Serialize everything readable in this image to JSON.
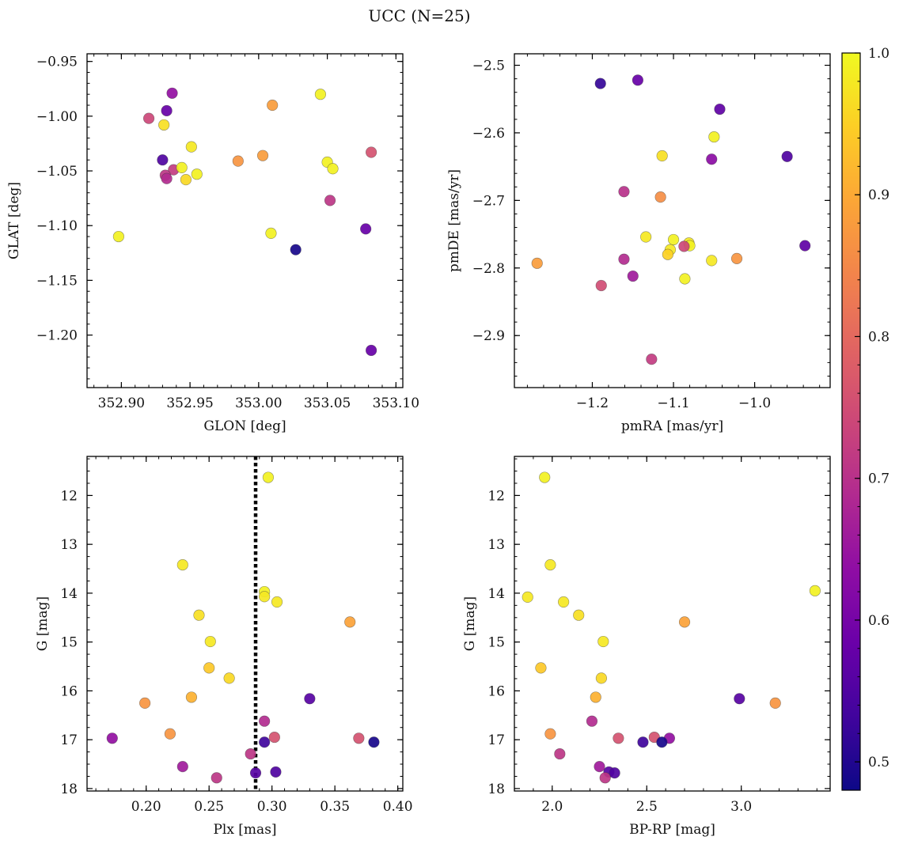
{
  "figure": {
    "title": "UCC (N=25)"
  },
  "colorbar": {
    "range": [
      0.48,
      1.0
    ],
    "ticks": [
      0.5,
      0.6,
      0.7,
      0.8,
      0.9,
      1.0
    ],
    "tick_labels": [
      "0.5",
      "0.6",
      "0.7",
      "0.8",
      "0.9",
      "1.0"
    ],
    "colormap": "plasma"
  },
  "chart_data": [
    {
      "type": "scatter",
      "id": "glon-glat",
      "xlabel": "GLON [deg]",
      "ylabel": "GLAT [deg]",
      "xlim": [
        352.875,
        353.105
      ],
      "ylim": [
        -1.248,
        -0.943
      ],
      "xticks": [
        352.9,
        352.95,
        353.0,
        353.05,
        353.1
      ],
      "xtick_labels": [
        "352.90",
        "352.95",
        "353.00",
        "353.05",
        "353.10"
      ],
      "yticks": [
        -0.95,
        -1.0,
        -1.05,
        -1.1,
        -1.15,
        -1.2
      ],
      "ytick_labels": [
        "−0.95",
        "−1.00",
        "−1.05",
        "−1.10",
        "−1.15",
        "−1.20"
      ],
      "y_inverted": false,
      "points": [
        {
          "x": 352.937,
          "y": -0.979,
          "c": 0.64
        },
        {
          "x": 352.92,
          "y": -1.002,
          "c": 0.74
        },
        {
          "x": 352.933,
          "y": -0.995,
          "c": 0.58
        },
        {
          "x": 352.931,
          "y": -1.008,
          "c": 0.97
        },
        {
          "x": 352.951,
          "y": -1.028,
          "c": 0.98
        },
        {
          "x": 352.93,
          "y": -1.04,
          "c": 0.55
        },
        {
          "x": 352.938,
          "y": -1.049,
          "c": 0.72
        },
        {
          "x": 352.932,
          "y": -1.054,
          "c": 0.71
        },
        {
          "x": 352.933,
          "y": -1.057,
          "c": 0.69
        },
        {
          "x": 352.944,
          "y": -1.047,
          "c": 0.99
        },
        {
          "x": 352.947,
          "y": -1.058,
          "c": 0.96
        },
        {
          "x": 352.955,
          "y": -1.053,
          "c": 0.99
        },
        {
          "x": 352.985,
          "y": -1.041,
          "c": 0.87
        },
        {
          "x": 353.003,
          "y": -1.036,
          "c": 0.88
        },
        {
          "x": 353.01,
          "y": -0.99,
          "c": 0.88
        },
        {
          "x": 353.045,
          "y": -0.98,
          "c": 0.99
        },
        {
          "x": 353.05,
          "y": -1.042,
          "c": 0.99
        },
        {
          "x": 353.054,
          "y": -1.048,
          "c": 0.99
        },
        {
          "x": 353.052,
          "y": -1.077,
          "c": 0.71
        },
        {
          "x": 353.082,
          "y": -1.033,
          "c": 0.76
        },
        {
          "x": 352.898,
          "y": -1.11,
          "c": 0.99
        },
        {
          "x": 353.009,
          "y": -1.107,
          "c": 0.99
        },
        {
          "x": 353.027,
          "y": -1.122,
          "c": 0.49
        },
        {
          "x": 353.078,
          "y": -1.103,
          "c": 0.58
        },
        {
          "x": 353.082,
          "y": -1.214,
          "c": 0.58
        }
      ]
    },
    {
      "type": "scatter",
      "id": "pmra-pmde",
      "xlabel": "pmRA [mas/yr]",
      "ylabel": "pmDE [mas/yr]",
      "xlim": [
        -1.296,
        -0.907
      ],
      "ylim": [
        -2.977,
        -2.483
      ],
      "xticks": [
        -1.2,
        -1.1,
        -1.0
      ],
      "xtick_labels": [
        "−1.2",
        "−1.1",
        "−1.0"
      ],
      "yticks": [
        -2.5,
        -2.6,
        -2.7,
        -2.8,
        -2.9
      ],
      "ytick_labels": [
        "−2.5",
        "−2.6",
        "−2.7",
        "−2.8",
        "−2.9"
      ],
      "y_inverted": false,
      "points": [
        {
          "x": -1.19,
          "y": -2.527,
          "c": 0.52
        },
        {
          "x": -1.144,
          "y": -2.522,
          "c": 0.58
        },
        {
          "x": -1.043,
          "y": -2.565,
          "c": 0.57
        },
        {
          "x": -1.05,
          "y": -2.606,
          "c": 0.99
        },
        {
          "x": -1.053,
          "y": -2.639,
          "c": 0.63
        },
        {
          "x": -0.96,
          "y": -2.635,
          "c": 0.55
        },
        {
          "x": -1.114,
          "y": -2.634,
          "c": 0.97
        },
        {
          "x": -1.161,
          "y": -2.687,
          "c": 0.7
        },
        {
          "x": -1.116,
          "y": -2.695,
          "c": 0.86
        },
        {
          "x": -1.268,
          "y": -2.793,
          "c": 0.88
        },
        {
          "x": -1.134,
          "y": -2.754,
          "c": 0.98
        },
        {
          "x": -1.1,
          "y": -2.758,
          "c": 0.99
        },
        {
          "x": -1.081,
          "y": -2.763,
          "c": 0.98
        },
        {
          "x": -1.08,
          "y": -2.767,
          "c": 0.99
        },
        {
          "x": -1.087,
          "y": -2.768,
          "c": 0.74
        },
        {
          "x": -1.104,
          "y": -2.773,
          "c": 0.98
        },
        {
          "x": -1.107,
          "y": -2.78,
          "c": 0.95
        },
        {
          "x": -0.938,
          "y": -2.767,
          "c": 0.57
        },
        {
          "x": -1.161,
          "y": -2.787,
          "c": 0.69
        },
        {
          "x": -1.053,
          "y": -2.789,
          "c": 0.98
        },
        {
          "x": -1.022,
          "y": -2.786,
          "c": 0.87
        },
        {
          "x": -1.15,
          "y": -2.812,
          "c": 0.66
        },
        {
          "x": -1.086,
          "y": -2.816,
          "c": 0.99
        },
        {
          "x": -1.189,
          "y": -2.826,
          "c": 0.75
        },
        {
          "x": -1.127,
          "y": -2.935,
          "c": 0.72
        }
      ]
    },
    {
      "type": "scatter",
      "id": "plx-g",
      "xlabel": "Plx [mas]",
      "ylabel": "G [mag]",
      "xlim": [
        0.153,
        0.404
      ],
      "ylim": [
        18.05,
        11.2
      ],
      "xticks": [
        0.2,
        0.25,
        0.3,
        0.35,
        0.4
      ],
      "xtick_labels": [
        "0.20",
        "0.25",
        "0.30",
        "0.35",
        "0.40"
      ],
      "yticks": [
        12,
        13,
        14,
        15,
        16,
        17,
        18
      ],
      "ytick_labels": [
        "12",
        "13",
        "14",
        "15",
        "16",
        "17",
        "18"
      ],
      "y_inverted": true,
      "vline": {
        "x": 0.287,
        "style": "dotted"
      },
      "points": [
        {
          "x": 0.297,
          "y": 11.63,
          "c": 0.99
        },
        {
          "x": 0.229,
          "y": 13.42,
          "c": 0.98
        },
        {
          "x": 0.294,
          "y": 13.97,
          "c": 0.99
        },
        {
          "x": 0.294,
          "y": 14.07,
          "c": 0.98
        },
        {
          "x": 0.304,
          "y": 14.18,
          "c": 0.98
        },
        {
          "x": 0.242,
          "y": 14.45,
          "c": 0.97
        },
        {
          "x": 0.362,
          "y": 14.59,
          "c": 0.89
        },
        {
          "x": 0.251,
          "y": 14.99,
          "c": 0.98
        },
        {
          "x": 0.25,
          "y": 15.53,
          "c": 0.94
        },
        {
          "x": 0.266,
          "y": 15.74,
          "c": 0.96
        },
        {
          "x": 0.236,
          "y": 16.13,
          "c": 0.91
        },
        {
          "x": 0.33,
          "y": 16.16,
          "c": 0.56
        },
        {
          "x": 0.199,
          "y": 16.25,
          "c": 0.87
        },
        {
          "x": 0.294,
          "y": 16.62,
          "c": 0.69
        },
        {
          "x": 0.219,
          "y": 16.88,
          "c": 0.87
        },
        {
          "x": 0.173,
          "y": 16.97,
          "c": 0.64
        },
        {
          "x": 0.302,
          "y": 16.95,
          "c": 0.76
        },
        {
          "x": 0.369,
          "y": 16.97,
          "c": 0.76
        },
        {
          "x": 0.294,
          "y": 17.05,
          "c": 0.53
        },
        {
          "x": 0.381,
          "y": 17.05,
          "c": 0.49
        },
        {
          "x": 0.283,
          "y": 17.29,
          "c": 0.71
        },
        {
          "x": 0.229,
          "y": 17.55,
          "c": 0.66
        },
        {
          "x": 0.287,
          "y": 17.68,
          "c": 0.56
        },
        {
          "x": 0.303,
          "y": 17.66,
          "c": 0.55
        },
        {
          "x": 0.256,
          "y": 17.78,
          "c": 0.71
        }
      ]
    },
    {
      "type": "scatter",
      "id": "bprp-g",
      "xlabel": "BP-RP [mag]",
      "ylabel": "G [mag]",
      "xlim": [
        1.8,
        3.47
      ],
      "ylim": [
        18.05,
        11.2
      ],
      "xticks": [
        2.0,
        2.5,
        3.0
      ],
      "xtick_labels": [
        "2.0",
        "2.5",
        "3.0"
      ],
      "yticks": [
        12,
        13,
        14,
        15,
        16,
        17,
        18
      ],
      "ytick_labels": [
        "12",
        "13",
        "14",
        "15",
        "16",
        "17",
        "18"
      ],
      "y_inverted": true,
      "points": [
        {
          "x": 1.96,
          "y": 11.63,
          "c": 0.99
        },
        {
          "x": 1.99,
          "y": 13.42,
          "c": 0.98
        },
        {
          "x": 3.39,
          "y": 13.95,
          "c": 0.99
        },
        {
          "x": 1.87,
          "y": 14.08,
          "c": 0.98
        },
        {
          "x": 2.06,
          "y": 14.18,
          "c": 0.98
        },
        {
          "x": 2.14,
          "y": 14.45,
          "c": 0.97
        },
        {
          "x": 2.7,
          "y": 14.59,
          "c": 0.89
        },
        {
          "x": 2.27,
          "y": 14.99,
          "c": 0.98
        },
        {
          "x": 1.94,
          "y": 15.53,
          "c": 0.94
        },
        {
          "x": 2.26,
          "y": 15.74,
          "c": 0.96
        },
        {
          "x": 2.23,
          "y": 16.13,
          "c": 0.91
        },
        {
          "x": 2.99,
          "y": 16.16,
          "c": 0.56
        },
        {
          "x": 3.18,
          "y": 16.25,
          "c": 0.87
        },
        {
          "x": 2.21,
          "y": 16.62,
          "c": 0.69
        },
        {
          "x": 1.99,
          "y": 16.88,
          "c": 0.87
        },
        {
          "x": 2.35,
          "y": 16.97,
          "c": 0.76
        },
        {
          "x": 2.54,
          "y": 16.95,
          "c": 0.76
        },
        {
          "x": 2.62,
          "y": 16.97,
          "c": 0.64
        },
        {
          "x": 2.48,
          "y": 17.05,
          "c": 0.53
        },
        {
          "x": 2.58,
          "y": 17.05,
          "c": 0.49
        },
        {
          "x": 2.04,
          "y": 17.29,
          "c": 0.71
        },
        {
          "x": 2.25,
          "y": 17.55,
          "c": 0.66
        },
        {
          "x": 2.3,
          "y": 17.66,
          "c": 0.56
        },
        {
          "x": 2.33,
          "y": 17.68,
          "c": 0.55
        },
        {
          "x": 2.28,
          "y": 17.78,
          "c": 0.71
        }
      ]
    }
  ]
}
